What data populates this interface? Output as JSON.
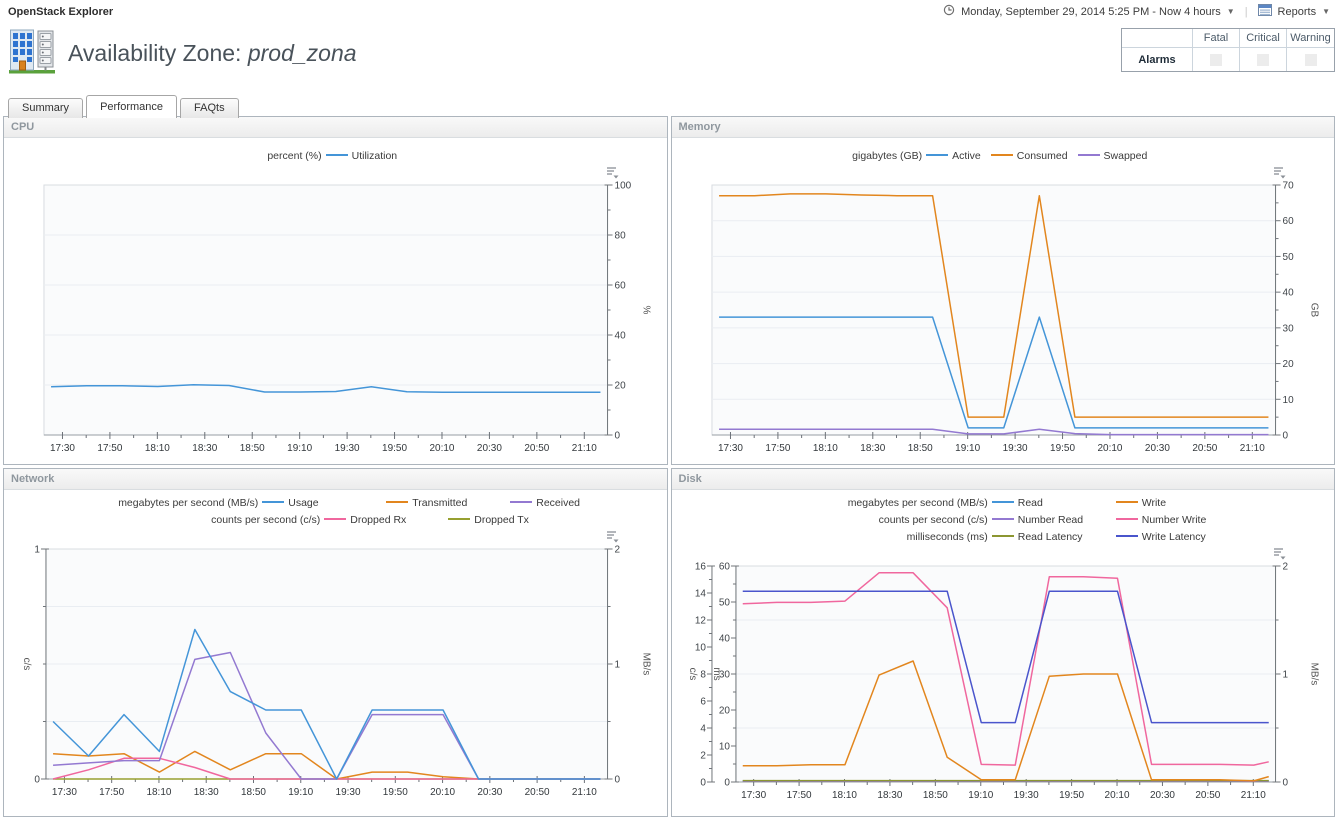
{
  "header": {
    "app_title": "OpenStack Explorer",
    "time_range": "Monday, September 29, 2014 5:25 PM - Now 4 hours",
    "reports_label": "Reports",
    "page_title_prefix": "Availability Zone: ",
    "page_title_name": "prod_zona"
  },
  "icons": {
    "time_range_icon": "clock",
    "reports_icon": "report-table",
    "dropdown": "▼",
    "chart_options_icon": "list-menu",
    "entity_icon": "availability-zone-building"
  },
  "alarms": {
    "row_label": "Alarms",
    "columns": [
      "Fatal",
      "Critical",
      "Warning"
    ]
  },
  "tabs": [
    {
      "label": "Summary",
      "active": false
    },
    {
      "label": "Performance",
      "active": true
    },
    {
      "label": "FAQts",
      "active": false
    }
  ],
  "chart_data": [
    {
      "id": "cpu",
      "panel_title": "CPU",
      "type": "line",
      "legend": [
        {
          "unit": "percent (%)",
          "items": [
            {
              "name": "Utilization",
              "color": "#4495d8"
            }
          ]
        }
      ],
      "x_range": [
        17.37,
        21.33
      ],
      "x_tick_labels": [
        "17:30",
        "17:50",
        "18:10",
        "18:30",
        "18:50",
        "19:10",
        "19:30",
        "19:50",
        "20:10",
        "20:30",
        "20:50",
        "21:10"
      ],
      "x_hours": [
        17.42,
        17.67,
        17.92,
        18.17,
        18.42,
        18.67,
        18.92,
        19.17,
        19.42,
        19.67,
        19.92,
        20.17,
        20.42,
        20.67,
        20.92,
        21.17,
        21.28
      ],
      "axes": [
        {
          "id": "pct",
          "side": "right",
          "slot": 0,
          "label": "%",
          "min": 0,
          "max": 100,
          "major": 20,
          "minor": 10
        }
      ],
      "gridlines": {
        "axis": "pct",
        "values": [
          20,
          40,
          60,
          80
        ]
      },
      "series": [
        {
          "name": "Utilization",
          "axis": "pct",
          "color": "#4495d8",
          "values": [
            19.3,
            19.7,
            19.7,
            19.4,
            20.1,
            19.8,
            17.2,
            17.2,
            17.4,
            19.3,
            17.3,
            17.1,
            17.1,
            17.1,
            17.1,
            17.1,
            17.1
          ]
        }
      ]
    },
    {
      "id": "memory",
      "panel_title": "Memory",
      "type": "line",
      "legend": [
        {
          "unit": "gigabytes (GB)",
          "items": [
            {
              "name": "Active",
              "color": "#4495d8"
            },
            {
              "name": "Consumed",
              "color": "#e2861e"
            },
            {
              "name": "Swapped",
              "color": "#9379d1"
            }
          ]
        }
      ],
      "x_range": [
        17.37,
        21.33
      ],
      "x_tick_labels": [
        "17:30",
        "17:50",
        "18:10",
        "18:30",
        "18:50",
        "19:10",
        "19:30",
        "19:50",
        "20:10",
        "20:30",
        "20:50",
        "21:10"
      ],
      "x_hours": [
        17.42,
        17.67,
        17.92,
        18.17,
        18.42,
        18.67,
        18.92,
        19.17,
        19.42,
        19.67,
        19.92,
        20.17,
        20.42,
        20.67,
        20.92,
        21.17,
        21.28
      ],
      "axes": [
        {
          "id": "gb",
          "side": "right",
          "slot": 0,
          "label": "GB",
          "min": 0,
          "max": 70,
          "major": 10,
          "minor": 5
        }
      ],
      "gridlines": {
        "axis": "gb",
        "values": [
          10,
          20,
          30,
          40,
          50,
          60
        ]
      },
      "series": [
        {
          "name": "Swapped",
          "axis": "gb",
          "color": "#9379d1",
          "values": [
            1.6,
            1.6,
            1.6,
            1.6,
            1.6,
            1.6,
            1.6,
            0.3,
            0.3,
            1.6,
            0.4,
            0.1,
            0.1,
            0.1,
            0.1,
            0.1,
            0.1
          ]
        },
        {
          "name": "Active",
          "axis": "gb",
          "color": "#4495d8",
          "values": [
            33,
            33,
            33,
            33,
            33,
            33,
            33,
            2,
            2,
            33,
            2,
            2,
            2,
            2,
            2,
            2,
            2
          ]
        },
        {
          "name": "Consumed",
          "axis": "gb",
          "color": "#e2861e",
          "values": [
            67,
            67,
            67.5,
            67.5,
            67.2,
            67,
            67,
            5,
            5,
            67,
            5,
            5,
            5,
            5,
            5,
            5,
            5
          ]
        }
      ]
    },
    {
      "id": "network",
      "panel_title": "Network",
      "type": "line",
      "legend": [
        {
          "unit": "megabytes per second (MB/s)",
          "items": [
            {
              "name": "Usage",
              "color": "#4495d8"
            },
            {
              "name": "Transmitted",
              "color": "#e2861e"
            },
            {
              "name": "Received",
              "color": "#9379d1"
            }
          ]
        },
        {
          "unit": "counts per second (c/s)",
          "items": [
            {
              "name": "Dropped Rx",
              "color": "#f0679e"
            },
            {
              "name": "Dropped Tx",
              "color": "#97a030"
            }
          ]
        }
      ],
      "x_range": [
        17.37,
        21.33
      ],
      "x_tick_labels": [
        "17:30",
        "17:50",
        "18:10",
        "18:30",
        "18:50",
        "19:10",
        "19:30",
        "19:50",
        "20:10",
        "20:30",
        "20:50",
        "21:10"
      ],
      "x_hours": [
        17.42,
        17.67,
        17.92,
        18.17,
        18.42,
        18.67,
        18.92,
        19.17,
        19.42,
        19.67,
        19.92,
        20.17,
        20.42,
        20.67,
        20.92,
        21.17,
        21.28
      ],
      "axes": [
        {
          "id": "cs",
          "side": "left",
          "slot": 0,
          "label": "c/s",
          "min": 0,
          "max": 1,
          "major": 1,
          "minor": 0.25
        },
        {
          "id": "mbs",
          "side": "right",
          "slot": 0,
          "label": "MB/s",
          "min": 0,
          "max": 2,
          "major": 1,
          "minor": 0.5
        }
      ],
      "gridlines": {
        "axis": "mbs",
        "values": [
          0.5,
          1,
          1.5
        ]
      },
      "series": [
        {
          "name": "Dropped Tx",
          "axis": "cs",
          "color": "#97a030",
          "values": [
            0,
            0,
            0,
            0,
            0,
            0,
            0,
            0,
            0,
            0,
            0,
            0,
            0,
            0,
            0,
            0,
            0
          ]
        },
        {
          "name": "Transmitted",
          "axis": "mbs",
          "color": "#e2861e",
          "values": [
            0.22,
            0.2,
            0.22,
            0.06,
            0.24,
            0.08,
            0.22,
            0.22,
            0,
            0.06,
            0.06,
            0.02,
            0,
            0,
            0,
            0,
            0
          ]
        },
        {
          "name": "Dropped Rx",
          "axis": "cs",
          "color": "#f0679e",
          "values": [
            0,
            0.04,
            0.09,
            0.09,
            0.05,
            0,
            0,
            0,
            0,
            0,
            0,
            0,
            0,
            0,
            0,
            0,
            0
          ]
        },
        {
          "name": "Received",
          "axis": "mbs",
          "color": "#9379d1",
          "values": [
            0.12,
            0.14,
            0.16,
            0.16,
            1.04,
            1.1,
            0.4,
            0,
            0,
            0.56,
            0.56,
            0.56,
            0,
            0,
            0,
            0,
            0
          ]
        },
        {
          "name": "Usage",
          "axis": "mbs",
          "color": "#4495d8",
          "values": [
            0.5,
            0.2,
            0.56,
            0.24,
            1.3,
            0.76,
            0.6,
            0.6,
            0,
            0.6,
            0.6,
            0.6,
            0,
            0,
            0,
            0,
            0
          ]
        }
      ]
    },
    {
      "id": "disk",
      "panel_title": "Disk",
      "type": "line",
      "legend": [
        {
          "unit": "megabytes per second (MB/s)",
          "items": [
            {
              "name": "Read",
              "color": "#4495d8"
            },
            {
              "name": "Write",
              "color": "#e2861e"
            }
          ]
        },
        {
          "unit": "counts per second (c/s)",
          "items": [
            {
              "name": "Number Read",
              "color": "#9379d1"
            },
            {
              "name": "Number Write",
              "color": "#f0679e"
            }
          ]
        },
        {
          "unit": "milliseconds (ms)",
          "items": [
            {
              "name": "Read Latency",
              "color": "#8c9631"
            },
            {
              "name": "Write Latency",
              "color": "#4a55cc"
            }
          ]
        }
      ],
      "x_range": [
        17.37,
        21.33
      ],
      "x_tick_labels": [
        "17:30",
        "17:50",
        "18:10",
        "18:30",
        "18:50",
        "19:10",
        "19:30",
        "19:50",
        "20:10",
        "20:30",
        "20:50",
        "21:10"
      ],
      "x_hours": [
        17.42,
        17.67,
        17.92,
        18.17,
        18.42,
        18.67,
        18.92,
        19.17,
        19.42,
        19.67,
        19.92,
        20.17,
        20.42,
        20.67,
        20.92,
        21.17,
        21.28
      ],
      "axes": [
        {
          "id": "cs",
          "side": "left",
          "slot": 1,
          "label": "c/s",
          "min": 0,
          "max": 16,
          "major": 2,
          "minor": 1
        },
        {
          "id": "ms",
          "side": "left",
          "slot": 0,
          "label": "ms",
          "min": 0,
          "max": 60,
          "major": 10,
          "minor": 5
        },
        {
          "id": "mbs",
          "side": "right",
          "slot": 0,
          "label": "MB/s",
          "min": 0,
          "max": 2,
          "major": 1,
          "minor": 0.5
        }
      ],
      "gridlines": {
        "axis": "mbs",
        "values": [
          0.5,
          1,
          1.5
        ]
      },
      "series": [
        {
          "name": "Read",
          "axis": "mbs",
          "color": "#4495d8",
          "values": [
            0.01,
            0.01,
            0.01,
            0.01,
            0.01,
            0.01,
            0.01,
            0.01,
            0.01,
            0.01,
            0.01,
            0.01,
            0.01,
            0.01,
            0.01,
            0.01,
            0.01
          ]
        },
        {
          "name": "Number Read",
          "axis": "cs",
          "color": "#9379d1",
          "values": [
            0.05,
            0.05,
            0.05,
            0.05,
            0.05,
            0.05,
            0.05,
            0.05,
            0.05,
            0.05,
            0.05,
            0.05,
            0.05,
            0.05,
            0.05,
            0.05,
            0.05
          ]
        },
        {
          "name": "Read Latency",
          "axis": "ms",
          "color": "#8c9631",
          "values": [
            0.4,
            0.4,
            0.4,
            0.4,
            0.4,
            0.4,
            0.4,
            0.4,
            0.4,
            0.4,
            0.4,
            0.4,
            0.4,
            0.4,
            0.4,
            0.4,
            0.4
          ]
        },
        {
          "name": "Write",
          "axis": "mbs",
          "color": "#e2861e",
          "values": [
            0.15,
            0.15,
            0.16,
            0.16,
            0.99,
            1.12,
            0.23,
            0.02,
            0.02,
            0.98,
            1.0,
            1.0,
            0.02,
            0.02,
            0.02,
            0.01,
            0.05
          ]
        },
        {
          "name": "Number Write",
          "axis": "cs",
          "color": "#f0679e",
          "values": [
            13.2,
            13.3,
            13.3,
            13.4,
            15.5,
            15.5,
            12.9,
            1.3,
            1.25,
            15.2,
            15.2,
            15.1,
            1.3,
            1.3,
            1.3,
            1.25,
            1.5
          ]
        },
        {
          "name": "Write Latency",
          "axis": "ms",
          "color": "#4a55cc",
          "values": [
            53,
            53,
            53,
            53,
            53,
            53,
            53,
            16.5,
            16.5,
            53,
            53,
            53,
            16.5,
            16.5,
            16.5,
            16.5,
            16.5
          ]
        }
      ]
    }
  ]
}
